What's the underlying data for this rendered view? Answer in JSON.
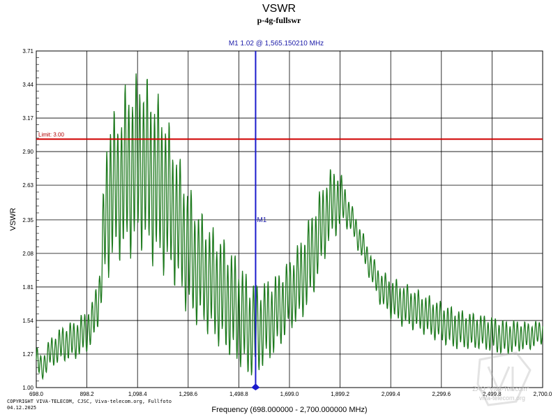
{
  "chart_data": {
    "type": "line",
    "title": "VSWR",
    "subtitle": "p-4g-fullswr",
    "xlabel": "Frequency (698.000000 - 2,700.000000 MHz)",
    "ylabel": "VSWR",
    "xlim": [
      698.0,
      2700.0
    ],
    "ylim": [
      1.0,
      3.71
    ],
    "x_ticks": [
      698.0,
      898.2,
      1098.4,
      1298.6,
      1498.8,
      1699.0,
      1899.2,
      2099.4,
      2299.6,
      2499.8,
      2700.0
    ],
    "x_tick_labels": [
      "698.0",
      "898.2",
      "1,098.4",
      "1,298.6",
      "1,498.8",
      "1,699.0",
      "1,899.2",
      "2,099.4",
      "2,299.6",
      "2,499.8",
      "2,700.0"
    ],
    "y_ticks": [
      1.0,
      1.27,
      1.54,
      1.81,
      2.08,
      2.35,
      2.63,
      2.9,
      3.17,
      3.44,
      3.71
    ],
    "y_tick_labels": [
      "1.00",
      "1.27",
      "1.54",
      "1.81",
      "2.08",
      "2.35",
      "2.63",
      "2.90",
      "3.17",
      "3.44",
      "3.71"
    ],
    "grid": true,
    "series": [
      {
        "color": "#1e7a1e",
        "envelope_x": [
          698,
          720,
          750,
          800,
          850,
          880,
          920,
          950,
          970,
          990,
          1020,
          1050,
          1080,
          1110,
          1140,
          1170,
          1200,
          1230,
          1260,
          1290,
          1320,
          1360,
          1400,
          1450,
          1500,
          1540,
          1580,
          1620,
          1660,
          1700,
          1740,
          1780,
          1820,
          1850,
          1880,
          1910,
          1940,
          1970,
          2000,
          2030,
          2060,
          2100,
          2150,
          2200,
          2250,
          2300,
          2350,
          2400,
          2450,
          2500,
          2550,
          2600,
          2650,
          2700
        ],
        "envelope_low": [
          1.1,
          1.05,
          1.15,
          1.2,
          1.22,
          1.25,
          1.32,
          1.55,
          1.8,
          1.9,
          2.0,
          2.0,
          2.05,
          2.1,
          2.0,
          1.95,
          1.9,
          1.85,
          1.75,
          1.6,
          1.5,
          1.45,
          1.35,
          1.25,
          1.15,
          1.05,
          1.1,
          1.2,
          1.3,
          1.45,
          1.5,
          1.65,
          1.9,
          2.1,
          2.2,
          2.3,
          2.25,
          2.1,
          1.95,
          1.8,
          1.65,
          1.55,
          1.48,
          1.45,
          1.4,
          1.35,
          1.3,
          1.3,
          1.3,
          1.28,
          1.25,
          1.28,
          1.3,
          1.35
        ],
        "envelope_high": [
          1.35,
          1.25,
          1.4,
          1.5,
          1.55,
          1.6,
          1.7,
          2.0,
          2.9,
          3.3,
          3.2,
          3.45,
          3.5,
          3.58,
          3.5,
          3.4,
          3.3,
          3.1,
          2.9,
          2.7,
          2.55,
          2.4,
          2.3,
          2.2,
          2.05,
          1.9,
          1.85,
          1.9,
          1.95,
          2.05,
          2.2,
          2.4,
          2.6,
          2.75,
          2.8,
          2.7,
          2.5,
          2.35,
          2.2,
          2.05,
          1.95,
          1.9,
          1.85,
          1.8,
          1.75,
          1.7,
          1.65,
          1.62,
          1.6,
          1.58,
          1.55,
          1.55,
          1.53,
          1.55
        ]
      }
    ],
    "limit": {
      "value": 3.0,
      "label": "Limit: 3.00",
      "color": "#d00000"
    },
    "marker": {
      "name": "M1",
      "x": 1565.15021,
      "readout": "M1   1.02 @ 1,565.150210 MHz",
      "color": "#1a1acc"
    }
  },
  "footer": {
    "copyright": "COPYRIGHT VIVA-TELECOM, CJSC, Viva-telecom.org, Fullfoto",
    "date": "04.12.2025",
    "watermark_line1": "ZAO \"Viva-Telecom\"",
    "watermark_line2": "viva-telecom.org"
  }
}
